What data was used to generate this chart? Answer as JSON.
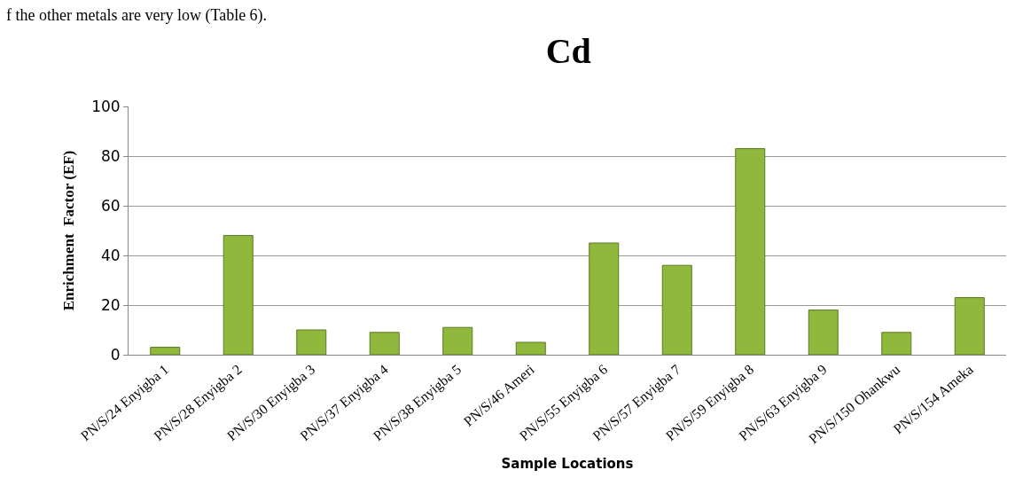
{
  "chart_data": {
    "type": "bar",
    "title": "Cd",
    "xlabel": "Sample Locations",
    "ylabel": "Enrichment  Factor (EF)",
    "annotations": [
      "f the other metals are very low (Table 6)."
    ],
    "categories": [
      "PN/S/24 Enyigba 1",
      "PN/S/28 Enyigba 2",
      "PN/S/30 Enyigba 3",
      "PN/S/37 Enyigba 4",
      "PN/S/38 Enyigba 5",
      "PN/S/46 Ameri",
      "PN/S/55 Enyigba 6",
      "PN/S/57 Enyigba 7",
      "PN/S/59 Enyigba 8",
      "PN/S/63 Enyigba 9",
      "PN/S/150 Ohankwu",
      "PN/S/154 Ameka"
    ],
    "values": [
      3,
      48,
      10,
      9,
      11,
      5,
      45,
      36,
      83,
      18,
      9,
      23
    ],
    "color": "#8fb83c",
    "ylim": [
      0,
      100
    ],
    "yticks": [
      0,
      20,
      40,
      60,
      80,
      100
    ],
    "grid": "y",
    "legend": false
  }
}
